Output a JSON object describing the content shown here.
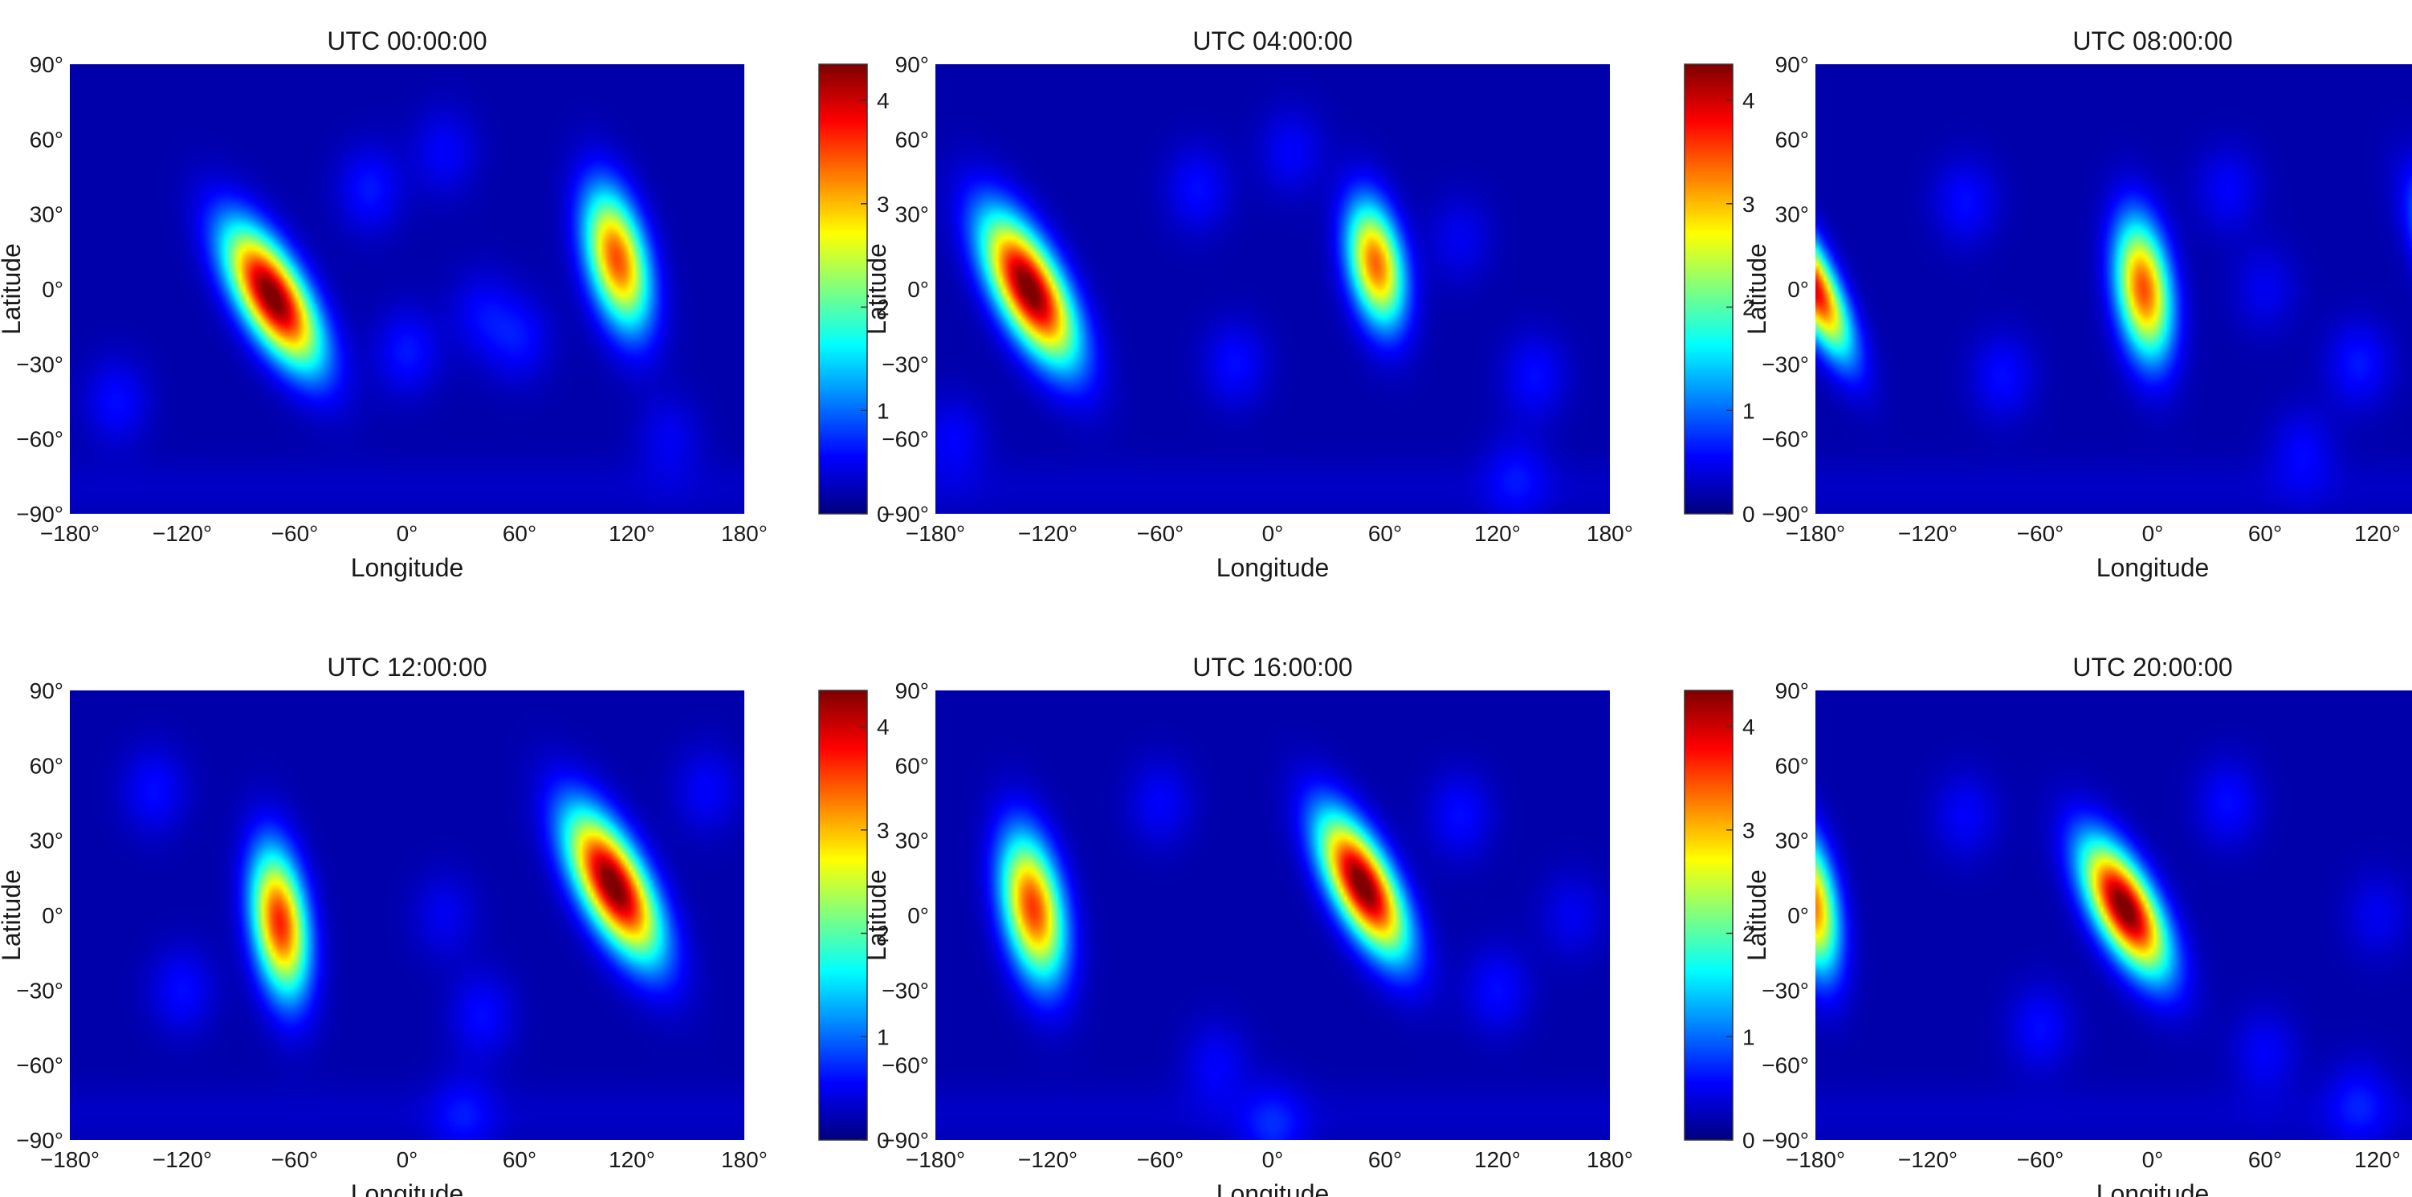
{
  "figure": {
    "background": "#ffffff"
  },
  "chart_data": [
    {
      "type": "heatmap",
      "title": "UTC 00:00:00",
      "xlabel": "Longitude",
      "ylabel": "Latitude",
      "xlim": [
        -180,
        180
      ],
      "ylim": [
        -90,
        90
      ],
      "xticks": [
        "−180°",
        "−120°",
        "−60°",
        "0°",
        "60°",
        "120°",
        "180°"
      ],
      "yticks": [
        "−90°",
        "−60°",
        "−30°",
        "0°",
        "30°",
        "60°",
        "90°"
      ],
      "colorbar": {
        "range": [
          0,
          4.35
        ],
        "ticks": [
          "0",
          "1",
          "2",
          "3",
          "4"
        ],
        "colormap": "jet"
      },
      "blobs": [
        {
          "lon": -72,
          "lat": -3,
          "peak": 4.3,
          "sigma_lon": 13,
          "sigma_lat": 19,
          "tilt": 0.6
        },
        {
          "lon": 112,
          "lat": 12,
          "peak": 3.3,
          "sigma_lon": 11,
          "sigma_lat": 19,
          "tilt": 0.25
        }
      ],
      "features": [
        {
          "lon": -20,
          "lat": 40,
          "value": 0.45
        },
        {
          "lon": 20,
          "lat": 55,
          "value": 0.35
        },
        {
          "lon": -155,
          "lat": -45,
          "value": 0.4
        },
        {
          "lon": 40,
          "lat": -10,
          "value": 0.35
        },
        {
          "lon": 140,
          "lat": -60,
          "value": 0.3
        },
        {
          "lon": 0,
          "lat": -25,
          "value": 0.45
        },
        {
          "lon": 60,
          "lat": -20,
          "value": 0.4
        }
      ]
    },
    {
      "type": "heatmap",
      "title": "UTC 04:00:00",
      "xlabel": "Longitude",
      "ylabel": "Latitude",
      "xlim": [
        -180,
        180
      ],
      "ylim": [
        -90,
        90
      ],
      "xticks": [
        "−180°",
        "−120°",
        "−60°",
        "0°",
        "60°",
        "120°",
        "180°"
      ],
      "yticks": [
        "−90°",
        "−60°",
        "−30°",
        "0°",
        "30°",
        "60°",
        "90°"
      ],
      "colorbar": {
        "range": [
          0,
          4.35
        ],
        "ticks": [
          "0",
          "1",
          "2",
          "3",
          "4"
        ],
        "colormap": "jet"
      },
      "blobs": [
        {
          "lon": -130,
          "lat": 0,
          "peak": 4.3,
          "sigma_lon": 13,
          "sigma_lat": 20,
          "tilt": 0.55
        },
        {
          "lon": 55,
          "lat": 10,
          "peak": 3.2,
          "sigma_lon": 10,
          "sigma_lat": 17,
          "tilt": 0.2
        }
      ],
      "features": [
        {
          "lon": -40,
          "lat": 40,
          "value": 0.4
        },
        {
          "lon": 10,
          "lat": 55,
          "value": 0.35
        },
        {
          "lon": -170,
          "lat": -60,
          "value": 0.35
        },
        {
          "lon": 140,
          "lat": -35,
          "value": 0.4
        },
        {
          "lon": 130,
          "lat": -75,
          "value": 0.35
        },
        {
          "lon": -20,
          "lat": -30,
          "value": 0.4
        },
        {
          "lon": 100,
          "lat": 20,
          "value": 0.3
        }
      ]
    },
    {
      "type": "heatmap",
      "title": "UTC 08:00:00",
      "xlabel": "Longitude",
      "ylabel": "Latitude",
      "xlim": [
        -180,
        180
      ],
      "ylim": [
        -90,
        90
      ],
      "xticks": [
        "−180°",
        "−120°",
        "−60°",
        "0°",
        "60°",
        "120°",
        "180°"
      ],
      "yticks": [
        "−90°",
        "−60°",
        "−30°",
        "0°",
        "30°",
        "60°",
        "90°"
      ],
      "colorbar": {
        "range": [
          0,
          4.35
        ],
        "ticks": [
          "0",
          "1",
          "2",
          "3",
          "4"
        ],
        "colormap": "jet"
      },
      "blobs": [
        {
          "lon": 170,
          "lat": 5,
          "peak": 4.3,
          "sigma_lon": 12,
          "sigma_lat": 20,
          "tilt": 0.55
        },
        {
          "lon": -182,
          "lat": 2,
          "peak": 3.8,
          "sigma_lon": 9,
          "sigma_lat": 19,
          "tilt": 0.55
        },
        {
          "lon": -5,
          "lat": 0,
          "peak": 3.3,
          "sigma_lon": 10,
          "sigma_lat": 19,
          "tilt": 0.15
        }
      ],
      "features": [
        {
          "lon": -100,
          "lat": 35,
          "value": 0.4
        },
        {
          "lon": 40,
          "lat": 40,
          "value": 0.35
        },
        {
          "lon": 110,
          "lat": -30,
          "value": 0.45
        },
        {
          "lon": 80,
          "lat": -65,
          "value": 0.35
        },
        {
          "lon": -80,
          "lat": -35,
          "value": 0.4
        },
        {
          "lon": 60,
          "lat": 0,
          "value": 0.3
        }
      ]
    },
    {
      "type": "heatmap",
      "title": "UTC 12:00:00",
      "xlabel": "Longitude",
      "ylabel": "Latitude",
      "xlim": [
        -180,
        180
      ],
      "ylim": [
        -90,
        90
      ],
      "xticks": [
        "−180°",
        "−120°",
        "−60°",
        "0°",
        "60°",
        "120°",
        "180°"
      ],
      "yticks": [
        "−90°",
        "−60°",
        "−30°",
        "0°",
        "30°",
        "60°",
        "90°"
      ],
      "colorbar": {
        "range": [
          0,
          4.35
        ],
        "ticks": [
          "0",
          "1",
          "2",
          "3",
          "4"
        ],
        "colormap": "jet"
      },
      "blobs": [
        {
          "lon": 110,
          "lat": 12,
          "peak": 4.3,
          "sigma_lon": 13,
          "sigma_lat": 20,
          "tilt": 0.55
        },
        {
          "lon": -68,
          "lat": -3,
          "peak": 3.5,
          "sigma_lon": 10,
          "sigma_lat": 20,
          "tilt": 0.15
        }
      ],
      "features": [
        {
          "lon": -135,
          "lat": 50,
          "value": 0.4
        },
        {
          "lon": 160,
          "lat": 50,
          "value": 0.35
        },
        {
          "lon": 40,
          "lat": -40,
          "value": 0.4
        },
        {
          "lon": 30,
          "lat": -80,
          "value": 0.35
        },
        {
          "lon": -120,
          "lat": -30,
          "value": 0.4
        },
        {
          "lon": 20,
          "lat": 0,
          "value": 0.3
        }
      ]
    },
    {
      "type": "heatmap",
      "title": "UTC 16:00:00",
      "xlabel": "Longitude",
      "ylabel": "Latitude",
      "xlim": [
        -180,
        180
      ],
      "ylim": [
        -90,
        90
      ],
      "xticks": [
        "−180°",
        "−120°",
        "−60°",
        "0°",
        "60°",
        "120°",
        "180°"
      ],
      "yticks": [
        "−90°",
        "−60°",
        "−30°",
        "0°",
        "30°",
        "60°",
        "90°"
      ],
      "colorbar": {
        "range": [
          0,
          4.35
        ],
        "ticks": [
          "0",
          "1",
          "2",
          "3",
          "4"
        ],
        "colormap": "jet"
      },
      "blobs": [
        {
          "lon": 48,
          "lat": 12,
          "peak": 4.3,
          "sigma_lon": 12,
          "sigma_lat": 19,
          "tilt": 0.55
        },
        {
          "lon": -128,
          "lat": 3,
          "peak": 3.4,
          "sigma_lon": 11,
          "sigma_lat": 20,
          "tilt": 0.2
        }
      ],
      "features": [
        {
          "lon": 100,
          "lat": 40,
          "value": 0.4
        },
        {
          "lon": -60,
          "lat": 45,
          "value": 0.35
        },
        {
          "lon": -30,
          "lat": -60,
          "value": 0.35
        },
        {
          "lon": 120,
          "lat": -30,
          "value": 0.4
        },
        {
          "lon": 0,
          "lat": -85,
          "value": 0.45
        },
        {
          "lon": 160,
          "lat": 0,
          "value": 0.3
        }
      ]
    },
    {
      "type": "heatmap",
      "title": "UTC 20:00:00",
      "xlabel": "Longitude",
      "ylabel": "Latitude",
      "xlim": [
        -180,
        180
      ],
      "ylim": [
        -90,
        90
      ],
      "xticks": [
        "−180°",
        "−120°",
        "−60°",
        "0°",
        "60°",
        "120°",
        "180°"
      ],
      "yticks": [
        "−90°",
        "−60°",
        "−30°",
        "0°",
        "30°",
        "60°",
        "90°"
      ],
      "colorbar": {
        "range": [
          0,
          4.35
        ],
        "ticks": [
          "0",
          "1",
          "2",
          "3",
          "4"
        ],
        "colormap": "jet"
      },
      "blobs": [
        {
          "lon": -15,
          "lat": 3,
          "peak": 4.3,
          "sigma_lon": 12,
          "sigma_lat": 18,
          "tilt": 0.55
        },
        {
          "lon": 178,
          "lat": 5,
          "peak": 3.3,
          "sigma_lon": 9,
          "sigma_lat": 19,
          "tilt": 0.2
        },
        {
          "lon": -182,
          "lat": 5,
          "peak": 3.2,
          "sigma_lon": 9,
          "sigma_lat": 19,
          "tilt": 0.2
        }
      ],
      "features": [
        {
          "lon": 40,
          "lat": 45,
          "value": 0.4
        },
        {
          "lon": -100,
          "lat": 40,
          "value": 0.35
        },
        {
          "lon": -60,
          "lat": -45,
          "value": 0.4
        },
        {
          "lon": 60,
          "lat": -55,
          "value": 0.35
        },
        {
          "lon": 110,
          "lat": -75,
          "value": 0.4
        },
        {
          "lon": 120,
          "lat": 0,
          "value": 0.3
        }
      ]
    }
  ]
}
